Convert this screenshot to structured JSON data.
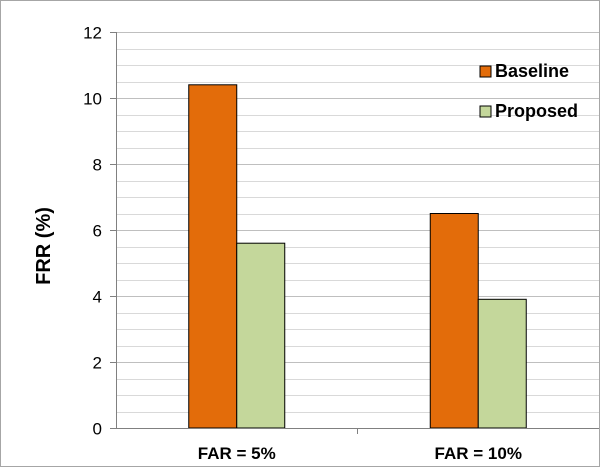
{
  "chart_data": {
    "type": "bar",
    "categories": [
      "FAR = 5%",
      "FAR = 10%"
    ],
    "series": [
      {
        "name": "Baseline",
        "values": [
          10.4,
          6.5
        ],
        "color": "#E36C0A"
      },
      {
        "name": "Proposed",
        "values": [
          5.6,
          3.9
        ],
        "color": "#C4D79B"
      }
    ],
    "ylabel": "FRR (%)",
    "ylim": [
      0,
      12
    ],
    "yticks": [
      0,
      2,
      4,
      6,
      8,
      10,
      12
    ],
    "grid": true,
    "legend_position": "top-right",
    "axis_color": "#808080",
    "gridline_color": "#D9D9D9"
  }
}
